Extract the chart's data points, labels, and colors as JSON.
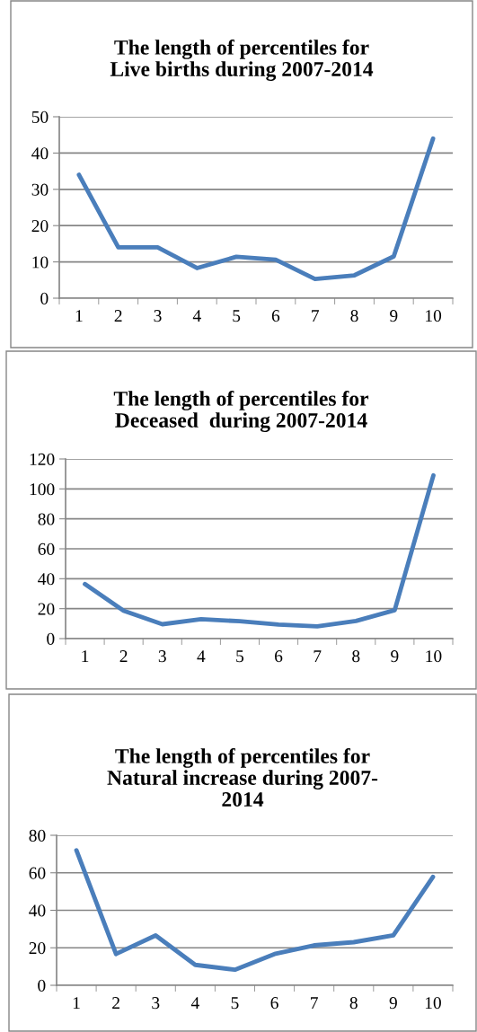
{
  "chart_data": [
    {
      "type": "line",
      "title": "The length of percentiles for\nLive births during 2007-2014",
      "categories": [
        "1",
        "2",
        "3",
        "4",
        "5",
        "6",
        "7",
        "8",
        "9",
        "10"
      ],
      "series": [
        {
          "color": "#4a7ebb",
          "values": [
            34,
            14,
            14,
            8.3,
            11.4,
            10.6,
            5.3,
            6.3,
            11.5,
            44
          ]
        }
      ],
      "ylim": [
        0,
        50
      ],
      "yticks": [
        0,
        10,
        20,
        30,
        40,
        50
      ],
      "grid": "y",
      "legend": false,
      "marker": "none",
      "line_style": "solid"
    },
    {
      "type": "line",
      "title": "The length of percentiles for\nDeceased  during 2007-2014",
      "categories": [
        "1",
        "2",
        "3",
        "4",
        "5",
        "6",
        "7",
        "8",
        "9",
        "10"
      ],
      "series": [
        {
          "color": "#4a7ebb",
          "values": [
            36.4,
            18.6,
            9.6,
            13,
            11.6,
            9.4,
            8.2,
            11.8,
            19,
            109
          ]
        }
      ],
      "ylim": [
        0,
        120
      ],
      "yticks": [
        0,
        20,
        40,
        60,
        80,
        100,
        120
      ],
      "grid": "y",
      "legend": false,
      "marker": "none",
      "line_style": "solid"
    },
    {
      "type": "line",
      "title": "The length of percentiles for\nNatural increase during 2007-\n2014",
      "categories": [
        "1",
        "2",
        "3",
        "4",
        "5",
        "6",
        "7",
        "8",
        "9",
        "10"
      ],
      "series": [
        {
          "color": "#4a7ebb",
          "values": [
            72,
            16.7,
            26.6,
            10.9,
            8.3,
            16.7,
            21.3,
            23,
            26.6,
            57.8
          ]
        }
      ],
      "ylim": [
        0,
        80
      ],
      "yticks": [
        0,
        20,
        40,
        60,
        80
      ],
      "grid": "y",
      "legend": false,
      "marker": "none",
      "line_style": "solid"
    }
  ]
}
